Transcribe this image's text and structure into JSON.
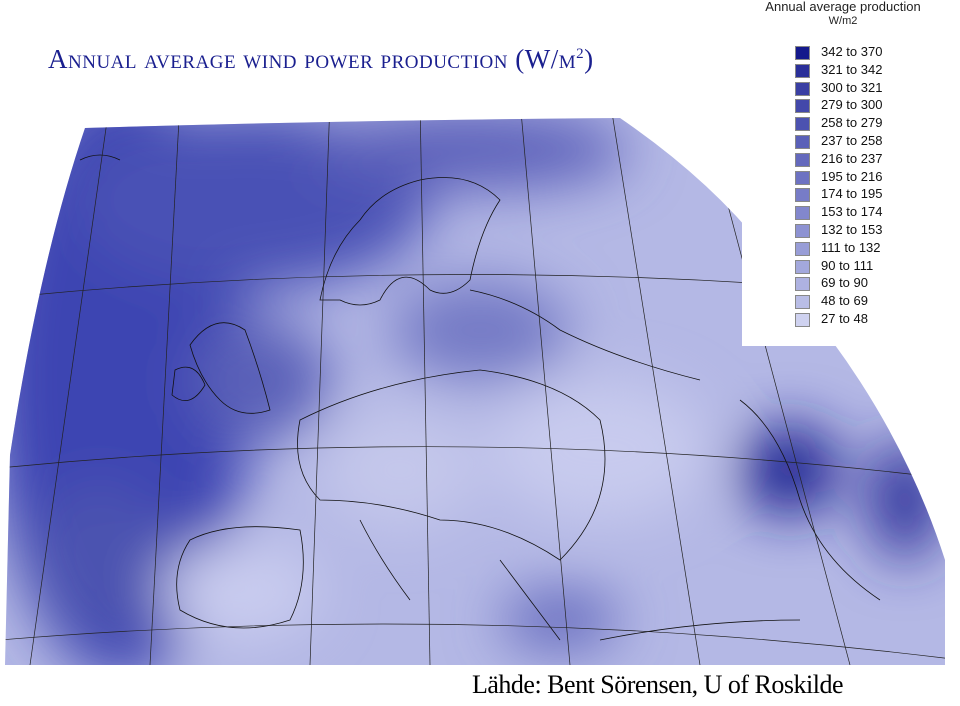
{
  "title": {
    "text": "Annual average wind power production (W/m",
    "superscript": "2",
    "close": ")"
  },
  "legend": {
    "title": "Annual average production",
    "unit": "W/m2",
    "items": [
      {
        "label": "342 to 370",
        "color": "#14198c"
      },
      {
        "label": "321 to 342",
        "color": "#2a2f99"
      },
      {
        "label": "300 to 321",
        "color": "#3a3fa3"
      },
      {
        "label": "279 to 300",
        "color": "#4348aa"
      },
      {
        "label": "258 to 279",
        "color": "#4c52b0"
      },
      {
        "label": "237 to 258",
        "color": "#5a60b8"
      },
      {
        "label": "216 to 237",
        "color": "#6469bd"
      },
      {
        "label": "195 to 216",
        "color": "#6d72c2"
      },
      {
        "label": "174 to 195",
        "color": "#777cc7"
      },
      {
        "label": "153 to 174",
        "color": "#8287cd"
      },
      {
        "label": "132 to 153",
        "color": "#8d92d2"
      },
      {
        "label": "111 to 132",
        "color": "#989dd7"
      },
      {
        "label": "90 to 111",
        "color": "#a3a8dc"
      },
      {
        "label": "69 to  90",
        "color": "#aeb2e1"
      },
      {
        "label": "48 to  69",
        "color": "#b9bde6"
      },
      {
        "label": "27 to  48",
        "color": "#cfd2f0"
      }
    ]
  },
  "source": "Lähde: Bent Sörensen, U of Roskilde"
}
